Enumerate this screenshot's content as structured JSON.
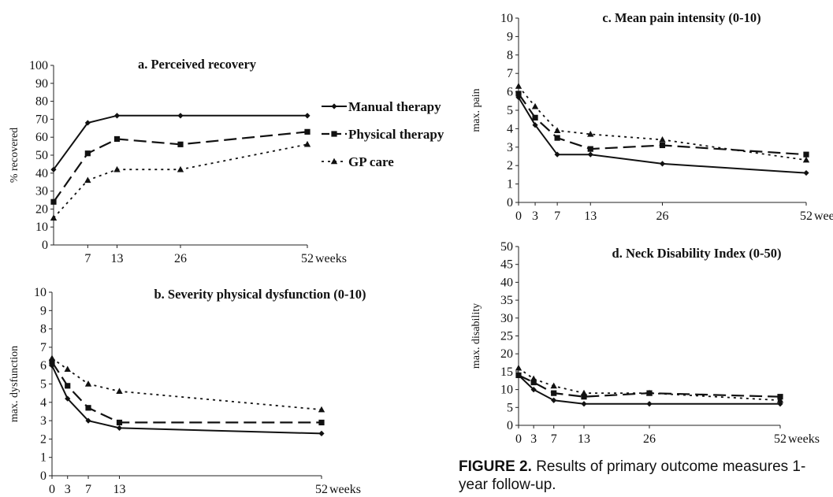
{
  "legend": {
    "entries": [
      {
        "label": "Manual therapy",
        "marker": "diamond",
        "dash": "solid"
      },
      {
        "label": "Physical therapy",
        "marker": "square",
        "dash": "long-dash"
      },
      {
        "label": "GP care",
        "marker": "triangle",
        "dash": "dotted"
      }
    ]
  },
  "caption": {
    "label": "FIGURE 2.",
    "text": "Results of primary outcome measures 1-year follow-up."
  },
  "chart_data": [
    {
      "id": "a",
      "type": "line",
      "title": "a. Perceived recovery",
      "ylabel": "% recovered",
      "xlabel": "",
      "xunit": "weeks",
      "ylim": [
        0,
        100
      ],
      "ytick_step": 10,
      "xticks": [
        7,
        13,
        26,
        52
      ],
      "xlim": [
        0,
        52
      ],
      "series": [
        {
          "name": "Manual therapy",
          "x": [
            0,
            7,
            13,
            26,
            52
          ],
          "values": [
            42,
            68,
            72,
            72,
            72
          ]
        },
        {
          "name": "Physical therapy",
          "x": [
            0,
            7,
            13,
            26,
            52
          ],
          "values": [
            24,
            51,
            59,
            56,
            63
          ]
        },
        {
          "name": "GP care",
          "x": [
            0,
            7,
            13,
            26,
            52
          ],
          "values": [
            15,
            36,
            42,
            42,
            56
          ]
        }
      ]
    },
    {
      "id": "b",
      "type": "line",
      "title": "b. Severity physical dysfunction (0-10)",
      "ylabel": "max. dysfunction",
      "xlabel": "",
      "xunit": "weeks",
      "ylim": [
        0,
        10
      ],
      "ytick_step": 1,
      "xticks": [
        0,
        3,
        7,
        13,
        52
      ],
      "xlim": [
        0,
        52
      ],
      "series": [
        {
          "name": "Manual therapy",
          "x": [
            0,
            3,
            7,
            13,
            52
          ],
          "values": [
            6.0,
            4.2,
            3.0,
            2.6,
            2.3
          ]
        },
        {
          "name": "Physical therapy",
          "x": [
            0,
            3,
            7,
            13,
            52
          ],
          "values": [
            6.2,
            4.9,
            3.7,
            2.9,
            2.9
          ]
        },
        {
          "name": "GP care",
          "x": [
            0,
            3,
            7,
            13,
            52
          ],
          "values": [
            6.4,
            5.8,
            5.0,
            4.6,
            3.6
          ]
        }
      ]
    },
    {
      "id": "c",
      "type": "line",
      "title": "c. Mean pain intensity (0-10)",
      "ylabel": "max. pain",
      "xlabel": "",
      "xunit": "weeks",
      "ylim": [
        0,
        10
      ],
      "ytick_step": 1,
      "xticks": [
        0,
        3,
        7,
        13,
        26,
        52
      ],
      "xlim": [
        0,
        52
      ],
      "series": [
        {
          "name": "Manual therapy",
          "x": [
            0,
            3,
            7,
            13,
            26,
            52
          ],
          "values": [
            5.7,
            4.2,
            2.6,
            2.6,
            2.1,
            1.6
          ]
        },
        {
          "name": "Physical therapy",
          "x": [
            0,
            3,
            7,
            13,
            26,
            52
          ],
          "values": [
            5.9,
            4.6,
            3.5,
            2.9,
            3.1,
            2.6
          ]
        },
        {
          "name": "GP care",
          "x": [
            0,
            3,
            7,
            13,
            26,
            52
          ],
          "values": [
            6.3,
            5.2,
            3.9,
            3.7,
            3.4,
            2.3
          ]
        }
      ]
    },
    {
      "id": "d",
      "type": "line",
      "title": "d. Neck Disability Index (0-50)",
      "ylabel": "max. disability",
      "xlabel": "",
      "xunit": "weeks",
      "ylim": [
        0,
        50
      ],
      "ytick_step": 5,
      "xticks": [
        0,
        3,
        7,
        13,
        26,
        52
      ],
      "xlim": [
        0,
        52
      ],
      "series": [
        {
          "name": "Manual therapy",
          "x": [
            0,
            3,
            7,
            13,
            26,
            52
          ],
          "values": [
            14,
            10,
            7,
            6,
            6,
            6
          ]
        },
        {
          "name": "Physical therapy",
          "x": [
            0,
            3,
            7,
            13,
            26,
            52
          ],
          "values": [
            14,
            12,
            9,
            8,
            9,
            8
          ]
        },
        {
          "name": "GP care",
          "x": [
            0,
            3,
            7,
            13,
            26,
            52
          ],
          "values": [
            16,
            13,
            11,
            9,
            9,
            7
          ]
        }
      ]
    }
  ]
}
